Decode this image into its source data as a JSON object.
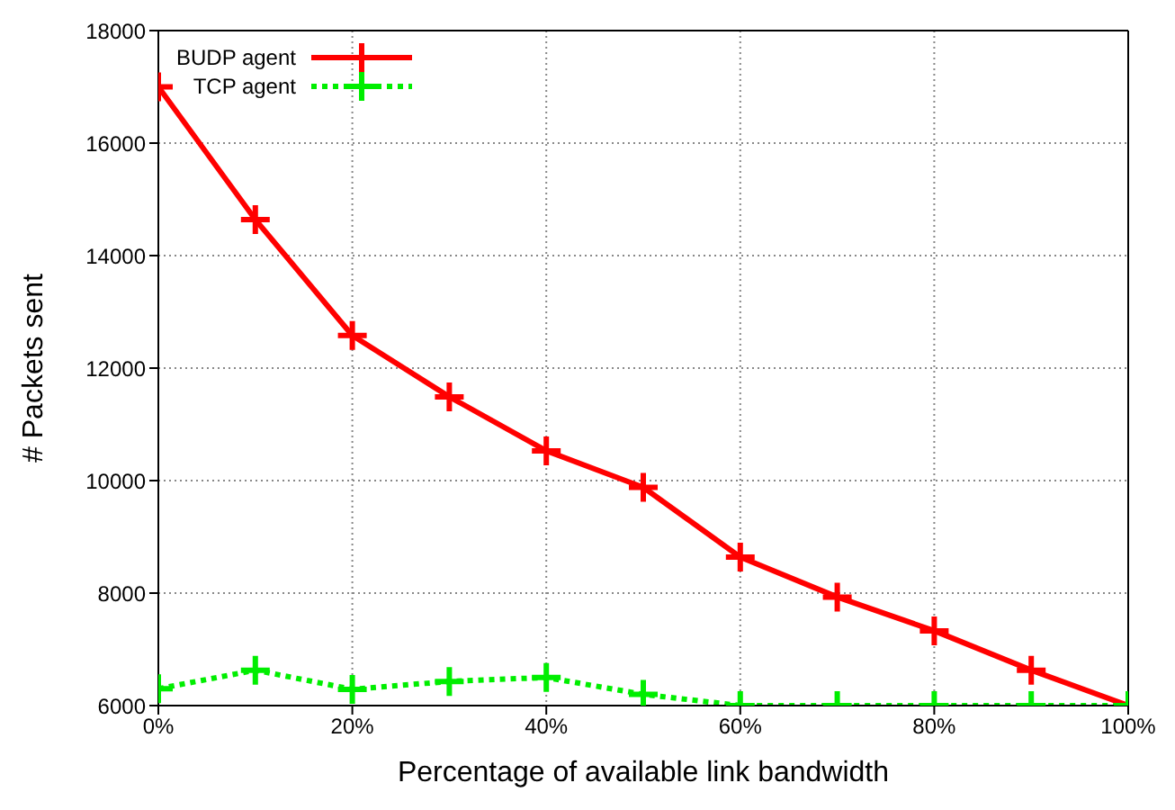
{
  "chart_data": {
    "type": "line",
    "xlabel": "Percentage of available link bandwidth",
    "ylabel": "# Packets sent",
    "x": [
      0,
      10,
      20,
      30,
      40,
      50,
      60,
      70,
      80,
      90,
      100
    ],
    "series": [
      {
        "name": "BUDP agent",
        "color": "#ff0000",
        "line_style": "solid",
        "marker": "cross",
        "values": [
          17000,
          14640,
          12580,
          11490,
          10530,
          9880,
          8640,
          7930,
          7330,
          6630,
          6000
        ]
      },
      {
        "name": "TCP agent",
        "color": "#00ee00",
        "line_style": "dotted",
        "marker": "cross",
        "values": [
          6300,
          6630,
          6290,
          6430,
          6500,
          6200,
          6000,
          6000,
          6000,
          6000,
          6000
        ]
      }
    ],
    "xlim": [
      0,
      100
    ],
    "xticks": [
      {
        "value": 0,
        "label": "0%"
      },
      {
        "value": 20,
        "label": "20%"
      },
      {
        "value": 40,
        "label": "40%"
      },
      {
        "value": 60,
        "label": "60%"
      },
      {
        "value": 80,
        "label": "80%"
      },
      {
        "value": 100,
        "label": "100%"
      }
    ],
    "ylim": [
      6000,
      18000
    ],
    "yticks": [
      6000,
      8000,
      10000,
      12000,
      14000,
      16000,
      18000
    ],
    "grid": true,
    "legend": "top left"
  }
}
